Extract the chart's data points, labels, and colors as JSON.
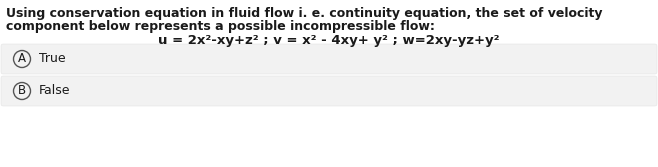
{
  "background_color": "#ffffff",
  "question_line1": "Using conservation equation in fluid flow i. e. continuity equation, the set of velocity",
  "question_line2": "component below represents a possible incompressible flow:",
  "equation": "u = 2x²-xy+z² ; v = x² - 4xy+ y² ; w=2xy-yz+y²",
  "option_A_label": "A",
  "option_A_text": "True",
  "option_B_label": "B",
  "option_B_text": "False",
  "option_bg_color": "#f2f2f2",
  "option_border_color": "#dddddd",
  "text_color": "#1a1a1a",
  "font_size_question": 9.0,
  "font_size_equation": 9.5,
  "font_size_options": 9.0,
  "circle_color": "#555555",
  "fig_width": 6.58,
  "fig_height": 1.67,
  "dpi": 100
}
